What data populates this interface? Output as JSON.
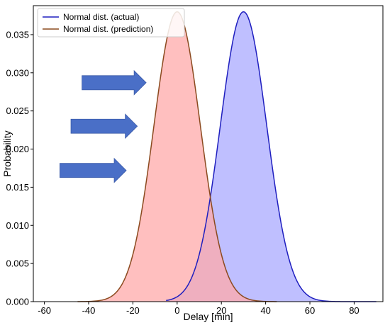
{
  "chart_data": {
    "type": "area",
    "xlabel": "Delay [min]",
    "ylabel": "Probability",
    "xlim": [
      -65,
      93
    ],
    "ylim": [
      0,
      0.0388
    ],
    "xticks": [
      -60,
      -40,
      -20,
      0,
      20,
      40,
      60,
      80
    ],
    "yticks": [
      0.0,
      0.005,
      0.01,
      0.015,
      0.02,
      0.025,
      0.03,
      0.035
    ],
    "ytick_labels": [
      "0.000",
      "0.005",
      "0.010",
      "0.015",
      "0.020",
      "0.025",
      "0.030",
      "0.035"
    ],
    "grid": false,
    "legend_position": "top-left",
    "series": [
      {
        "name": "Normal dist. (actual)",
        "distribution": "normal",
        "mean": 30,
        "std": 10.5,
        "peak": 0.038,
        "x_range": [
          -5,
          90
        ],
        "line_color": "#1f1fbf",
        "fill_color": "#aaaaff"
      },
      {
        "name": "Normal dist. (prediction)",
        "distribution": "normal",
        "mean": 0,
        "std": 10.5,
        "peak": 0.038,
        "x_range": [
          -45,
          45
        ],
        "line_color": "#8b4a1f",
        "fill_color": "#ffaaaa"
      }
    ],
    "annotations": [
      {
        "type": "arrow",
        "color": "#4a6fc7",
        "x_start": -43,
        "x_end": -14,
        "y": 0.0287
      },
      {
        "type": "arrow",
        "color": "#4a6fc7",
        "x_start": -48,
        "x_end": -18,
        "y": 0.023
      },
      {
        "type": "arrow",
        "color": "#4a6fc7",
        "x_start": -53,
        "x_end": -23,
        "y": 0.0172
      }
    ]
  }
}
